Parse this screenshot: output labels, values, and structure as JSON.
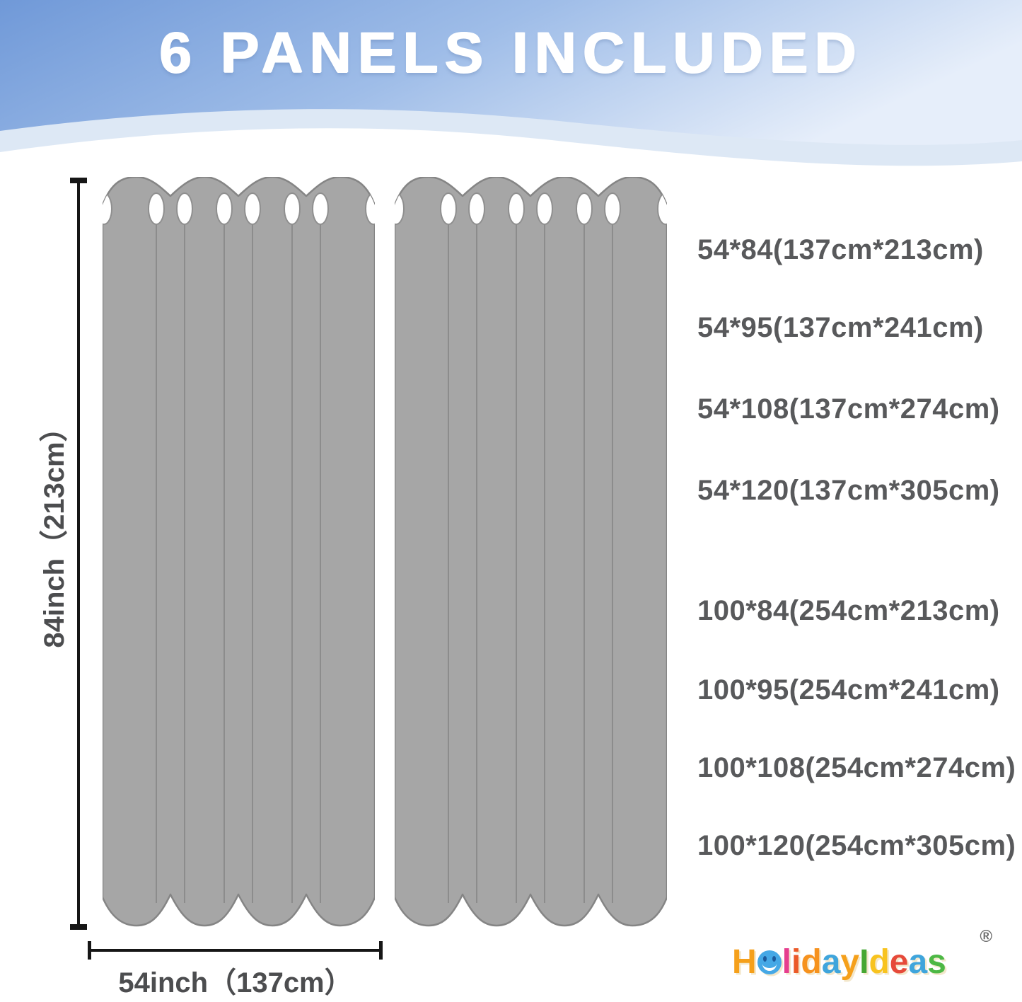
{
  "header": {
    "title": "6 PANELS INCLUDED"
  },
  "dimensions": {
    "height_label": "84inch（213cm）",
    "width_label": "54inch（137cm）"
  },
  "sizes": {
    "group1": [
      "54*84(137cm*213cm)",
      "54*95(137cm*241cm)",
      "54*108(137cm*274cm)",
      "54*120(137cm*305cm)"
    ],
    "group2": [
      "100*84(254cm*213cm)",
      "100*95(254cm*241cm)",
      "100*108(254cm*274cm)",
      "100*120(254cm*305cm)"
    ]
  },
  "logo": {
    "name": "HolidayIdeas",
    "registered_mark": "®",
    "letters": [
      {
        "ch": "H",
        "color": "#f5a01b"
      },
      {
        "ch": "o",
        "color": "#45a8e6",
        "smiley": true
      },
      {
        "ch": "l",
        "color": "#e63e8e"
      },
      {
        "ch": "i",
        "color": "#eb5a28"
      },
      {
        "ch": "d",
        "color": "#f6921e"
      },
      {
        "ch": "a",
        "color": "#3fa5dc"
      },
      {
        "ch": "y",
        "color": "#f5a01b"
      },
      {
        "ch": "I",
        "color": "#47a733"
      },
      {
        "ch": "d",
        "color": "#f8c31f"
      },
      {
        "ch": "e",
        "color": "#e64a3a"
      },
      {
        "ch": "a",
        "color": "#3fa5dc"
      },
      {
        "ch": "s",
        "color": "#4db845"
      }
    ]
  },
  "colors": {
    "header_gradient_start": "#7099d8",
    "header_gradient_mid": "#9fbde8",
    "header_gradient_end": "#e6eefa",
    "header_wave_pale": "#d9e5f4",
    "curtain_fill": "#a6a6a6",
    "curtain_outline": "#858585",
    "grommet_fill": "#ffffff",
    "dimension_line": "#161616",
    "size_text": "#58595b",
    "title_text": "#ffffff"
  }
}
